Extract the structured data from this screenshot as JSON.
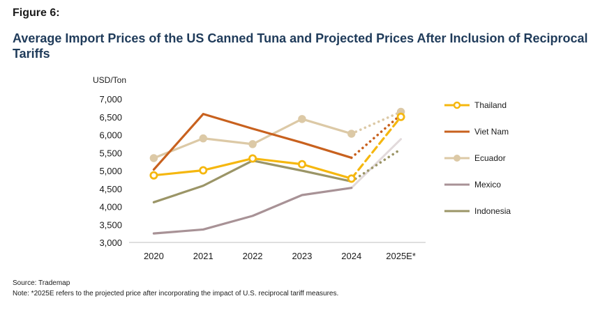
{
  "figure_label": "Figure 6:",
  "title": "Average Import Prices of the US Canned Tuna and Projected Prices After Inclusion of Reciprocal Tariffs",
  "source": "Source: Trademap",
  "note": "Note: *2025E refers to the projected price after incorporating the impact of U.S. reciprocal tariff measures.",
  "chart_data": {
    "type": "line",
    "ylabel": "USD/Ton",
    "ylim": [
      3000,
      7000
    ],
    "yticks": [
      3000,
      3500,
      4000,
      4500,
      5000,
      5500,
      6000,
      6500,
      7000
    ],
    "ytick_labels": [
      "3,000",
      "3,500",
      "4,000",
      "4,500",
      "5,000",
      "5,500",
      "6,000",
      "6,500",
      "7,000"
    ],
    "categories": [
      "2020",
      "2021",
      "2022",
      "2023",
      "2024",
      "2025E*"
    ],
    "series": [
      {
        "name": "Thailand",
        "color": "#f5b70f",
        "markers": true,
        "projection_style": "dashed",
        "values": [
          4870,
          5010,
          5340,
          5180,
          4780,
          6500
        ]
      },
      {
        "name": "Viet Nam",
        "color": "#c8611e",
        "markers": false,
        "projection_style": "dotted",
        "values": [
          5030,
          6580,
          6170,
          5780,
          5360,
          6560
        ]
      },
      {
        "name": "Ecuador",
        "color": "#dcc9a6",
        "markers": true,
        "projection_style": "dotted",
        "values": [
          5350,
          5900,
          5740,
          6440,
          6030,
          6640
        ]
      },
      {
        "name": "Mexico",
        "color": "#a89296",
        "markers": false,
        "projection_style": "solid-light",
        "values": [
          3250,
          3360,
          3740,
          4320,
          4520,
          5880
        ]
      },
      {
        "name": "Indonesia",
        "color": "#9b9567",
        "markers": false,
        "projection_style": "dotted",
        "values": [
          4120,
          4580,
          5280,
          5000,
          4700,
          5600
        ]
      }
    ]
  }
}
